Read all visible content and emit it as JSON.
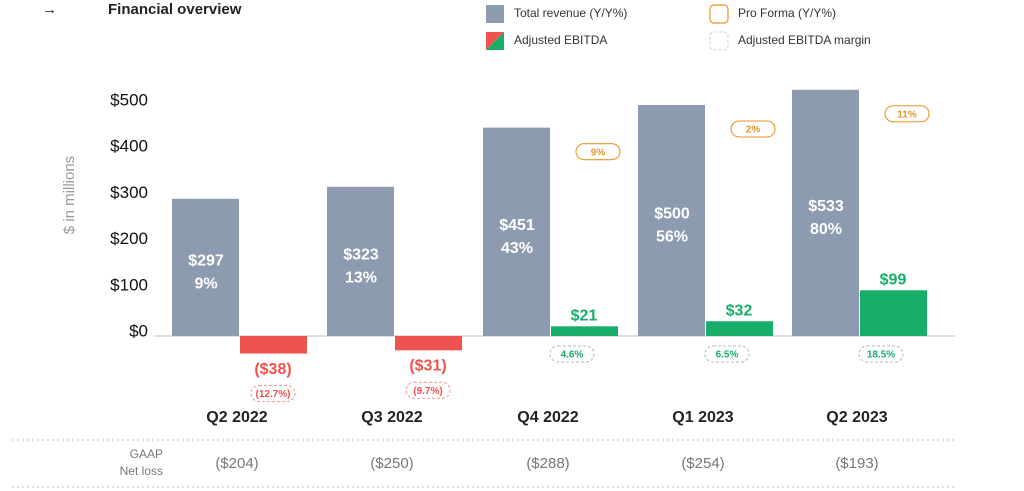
{
  "chart_data": {
    "type": "bar",
    "icon": "→",
    "title": "Financial overview",
    "y_axis_label": "$ in millions",
    "categories": [
      "Q2 2022",
      "Q3 2022",
      "Q4 2022",
      "Q1 2023",
      "Q2 2023"
    ],
    "ylim": [
      -50,
      550
    ],
    "yticks": [
      {
        "value": 0,
        "label": "$0"
      },
      {
        "value": 100,
        "label": "$100"
      },
      {
        "value": 200,
        "label": "$200"
      },
      {
        "value": 300,
        "label": "$300"
      },
      {
        "value": 400,
        "label": "$400"
      },
      {
        "value": 500,
        "label": "$500"
      }
    ],
    "series": [
      {
        "name": "Total revenue (Y/Y%)",
        "color": "#8d9bb0",
        "values": [
          297,
          323,
          451,
          500,
          533
        ],
        "value_labels": [
          "$297",
          "$323",
          "$451",
          "$500",
          "$533"
        ],
        "growth": [
          9,
          13,
          43,
          56,
          80
        ],
        "growth_labels": [
          "9%",
          "13%",
          "43%",
          "56%",
          "80%"
        ]
      },
      {
        "name": "Pro Forma (Y/Y%)",
        "color": "#e8952a",
        "values": [
          null,
          null,
          9,
          2,
          11
        ],
        "value_labels": [
          null,
          null,
          "9%",
          "2%",
          "11%"
        ]
      },
      {
        "name": "Adjusted EBITDA",
        "color": "#19ad6a",
        "negative_color": "#ef5350",
        "values": [
          -38,
          -31,
          21,
          32,
          99
        ],
        "value_labels": [
          "($38)",
          "($31)",
          "$21",
          "$32",
          "$99"
        ]
      },
      {
        "name": "Adjusted EBITDA margin",
        "color": "#cccccc",
        "values": [
          -12.7,
          -9.7,
          4.6,
          6.5,
          18.5
        ],
        "value_labels": [
          "(12.7%)",
          "(9.7%)",
          "4.6%",
          "6.5%",
          "18.5%"
        ]
      }
    ],
    "footer_row": {
      "label_lines": [
        "GAAP",
        "Net loss"
      ],
      "values": [
        -204,
        -250,
        -288,
        -254,
        -193
      ],
      "value_labels": [
        "($204)",
        "($250)",
        "($288)",
        "($254)",
        "($193)"
      ]
    }
  }
}
